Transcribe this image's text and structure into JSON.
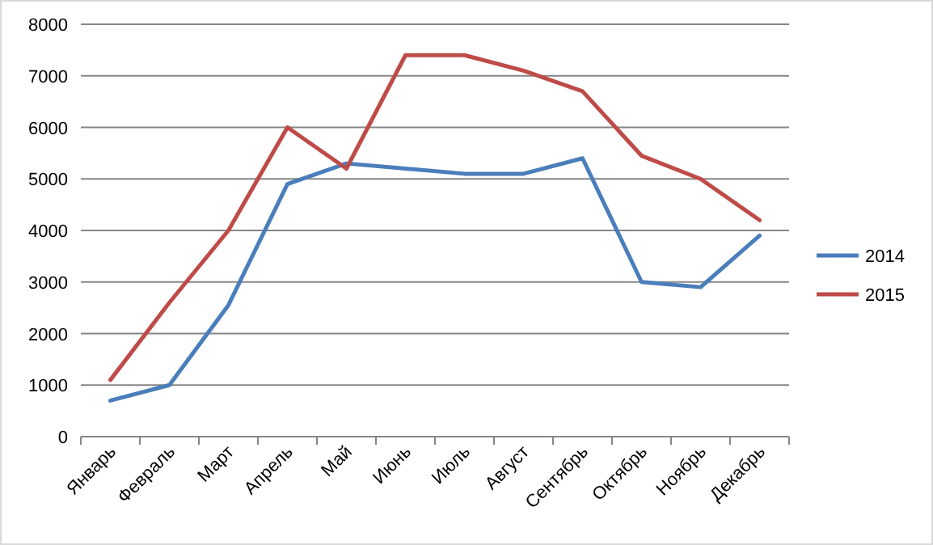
{
  "chart_data": {
    "type": "line",
    "categories": [
      "Январь",
      "Февраль",
      "Март",
      "Апрель",
      "Май",
      "Июнь",
      "Июль",
      "Август",
      "Сентябрь",
      "Октябрь",
      "Ноябрь",
      "Декабрь"
    ],
    "series": [
      {
        "name": "2014",
        "color": "#4a7ebb",
        "values": [
          700,
          1000,
          2550,
          4900,
          5300,
          5200,
          5100,
          5100,
          5400,
          3000,
          2900,
          3900
        ]
      },
      {
        "name": "2015",
        "color": "#be4b48",
        "values": [
          1100,
          2600,
          4000,
          6000,
          5200,
          7400,
          7400,
          7100,
          6700,
          5450,
          5000,
          4200
        ]
      }
    ],
    "ylim": [
      0,
      8000
    ],
    "yticks": [
      0,
      1000,
      2000,
      3000,
      4000,
      5000,
      6000,
      7000,
      8000
    ],
    "grid": "y",
    "legend": "right",
    "marker": "none",
    "line_style": "solid"
  }
}
